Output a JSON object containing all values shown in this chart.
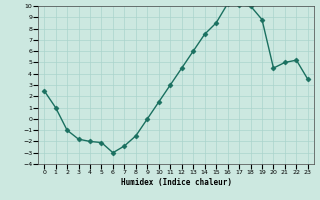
{
  "x": [
    0,
    1,
    2,
    3,
    4,
    5,
    6,
    7,
    8,
    9,
    10,
    11,
    12,
    13,
    14,
    15,
    16,
    17,
    18,
    19,
    20,
    21,
    22,
    23
  ],
  "y": [
    2.5,
    1.0,
    -1.0,
    -1.8,
    -2.0,
    -2.1,
    -3.0,
    -2.4,
    -1.5,
    0.0,
    1.5,
    3.0,
    4.5,
    6.0,
    7.5,
    8.5,
    10.2,
    10.1,
    10.0,
    8.8,
    4.5,
    5.0,
    5.2,
    3.5
  ],
  "xlabel": "Humidex (Indice chaleur)",
  "xlim": [
    -0.5,
    23.5
  ],
  "ylim": [
    -4,
    10
  ],
  "line_color": "#1a7060",
  "marker": "D",
  "marker_size": 2.5,
  "bg_color": "#cce8e0",
  "grid_color": "#aad4cc",
  "yticks": [
    -4,
    -3,
    -2,
    -1,
    0,
    1,
    2,
    3,
    4,
    5,
    6,
    7,
    8,
    9,
    10
  ],
  "xticks": [
    0,
    1,
    2,
    3,
    4,
    5,
    6,
    7,
    8,
    9,
    10,
    11,
    12,
    13,
    14,
    15,
    16,
    17,
    18,
    19,
    20,
    21,
    22,
    23
  ]
}
